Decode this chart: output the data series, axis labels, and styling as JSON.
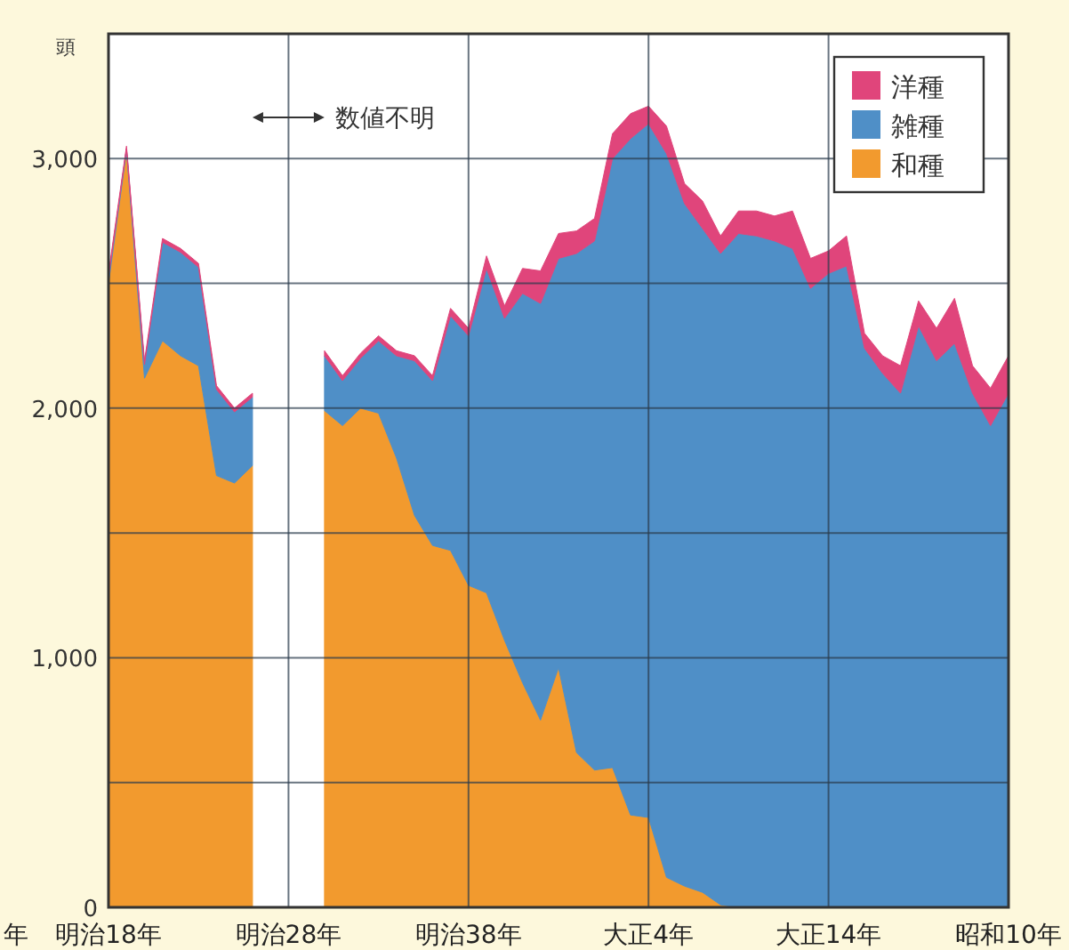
{
  "chart_data": {
    "type": "area",
    "stacked": true,
    "ylabel": "頭",
    "xlabel": "年",
    "categories": [
      "明治18年",
      null,
      null,
      null,
      null,
      null,
      null,
      null,
      null,
      null,
      "明治28年",
      null,
      null,
      null,
      null,
      null,
      null,
      null,
      null,
      null,
      "明治38年",
      null,
      null,
      null,
      null,
      null,
      null,
      null,
      null,
      null,
      "大正4年",
      null,
      null,
      null,
      null,
      null,
      null,
      null,
      null,
      null,
      "大正14年",
      null,
      null,
      null,
      null,
      null,
      null,
      null,
      null,
      null,
      "昭和10年"
    ],
    "annotations": [
      "数値不明"
    ],
    "series": [
      {
        "name": "和種",
        "color": "#f29a2e",
        "values": [
          2500,
          3030,
          2120,
          2270,
          2210,
          2170,
          1730,
          1700,
          1770,
          null,
          null,
          null,
          1990,
          1930,
          2000,
          1980,
          1800,
          1570,
          1450,
          1430,
          1290,
          1260,
          1070,
          900,
          750,
          960,
          620,
          550,
          560,
          370,
          360,
          120,
          85,
          60,
          10,
          0,
          0,
          0,
          0,
          0,
          0,
          0,
          0,
          0,
          0,
          0,
          0,
          0,
          0,
          0,
          0
        ]
      },
      {
        "name": "雑種",
        "color": "#4f8fc7",
        "values": [
          25,
          10,
          55,
          395,
          415,
          395,
          345,
          285,
          275,
          null,
          null,
          null,
          220,
          180,
          200,
          290,
          410,
          620,
          660,
          940,
          1000,
          1300,
          1290,
          1560,
          1670,
          1640,
          2000,
          2120,
          2440,
          2710,
          2780,
          2900,
          2735,
          2660,
          2610,
          2700,
          2690,
          2670,
          2640,
          2480,
          2540,
          2570,
          2240,
          2140,
          2060,
          2330,
          2190,
          2260,
          2060,
          1930,
          2060
        ]
      },
      {
        "name": "洋種",
        "color": "#e0457b",
        "values": [
          15,
          10,
          15,
          15,
          15,
          15,
          15,
          15,
          15,
          null,
          null,
          null,
          20,
          20,
          20,
          20,
          20,
          20,
          20,
          30,
          30,
          50,
          50,
          100,
          130,
          100,
          90,
          90,
          100,
          100,
          70,
          110,
          80,
          110,
          70,
          90,
          100,
          100,
          150,
          120,
          90,
          120,
          60,
          70,
          110,
          100,
          130,
          180,
          110,
          150,
          150
        ]
      }
    ],
    "ylim": [
      0,
      3500
    ],
    "yticks": [
      {
        "value": 0,
        "label": "0"
      },
      {
        "value": 500,
        "label": null
      },
      {
        "value": 1000,
        "label": "1,000"
      },
      {
        "value": 1500,
        "label": null
      },
      {
        "value": 2000,
        "label": "2,000"
      },
      {
        "value": 2500,
        "label": null
      },
      {
        "value": 3000,
        "label": "3,000"
      }
    ],
    "grid": true,
    "legend": "top right"
  }
}
